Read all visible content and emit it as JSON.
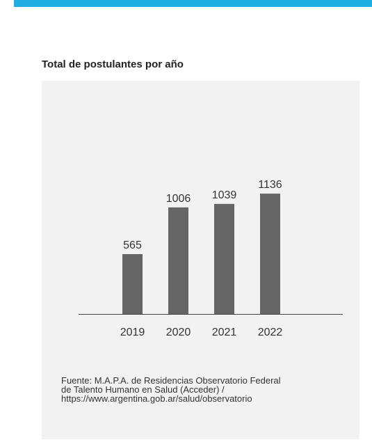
{
  "chart_data": {
    "type": "bar",
    "title": "Total de postulantes por año",
    "categories": [
      "2019",
      "2020",
      "2021",
      "2022"
    ],
    "values": [
      565,
      1006,
      1039,
      1136
    ],
    "ylim": [
      0,
      1150
    ],
    "grid": false,
    "legend": "none",
    "bar_color": "#666666",
    "source_lines": [
      "Fuente: M.A.P.A. de Residencias Observatorio Federal",
      "de Talento Humano en Salud (Acceder) /",
      "https://www.argentina.gob.ar/salud/observatorio"
    ]
  },
  "colors": {
    "accent": "#20aee3",
    "panel": "#f2f2f2"
  }
}
